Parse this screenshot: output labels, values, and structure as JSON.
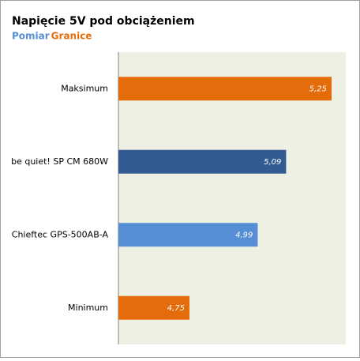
{
  "chart_data": {
    "type": "hbar",
    "title": "Napięcie 5V pod obciążeniem",
    "legend": [
      {
        "name": "Pomiar",
        "color": "#558ed5"
      },
      {
        "name": "Granice",
        "color": "#e46c0a"
      }
    ],
    "categories": [
      "Maksimum",
      "be quiet! SP CM 680W",
      "Chieftec GPS-500AB-A",
      "Minimum"
    ],
    "values": [
      5.25,
      5.09,
      4.99,
      4.75
    ],
    "value_labels": [
      "5,25",
      "5,09",
      "4,99",
      "4,75"
    ],
    "colors": [
      "#e46c0a",
      "#335b93",
      "#558ed5",
      "#e46c0a"
    ],
    "xlim": [
      4.5,
      5.3
    ],
    "grid": false
  }
}
